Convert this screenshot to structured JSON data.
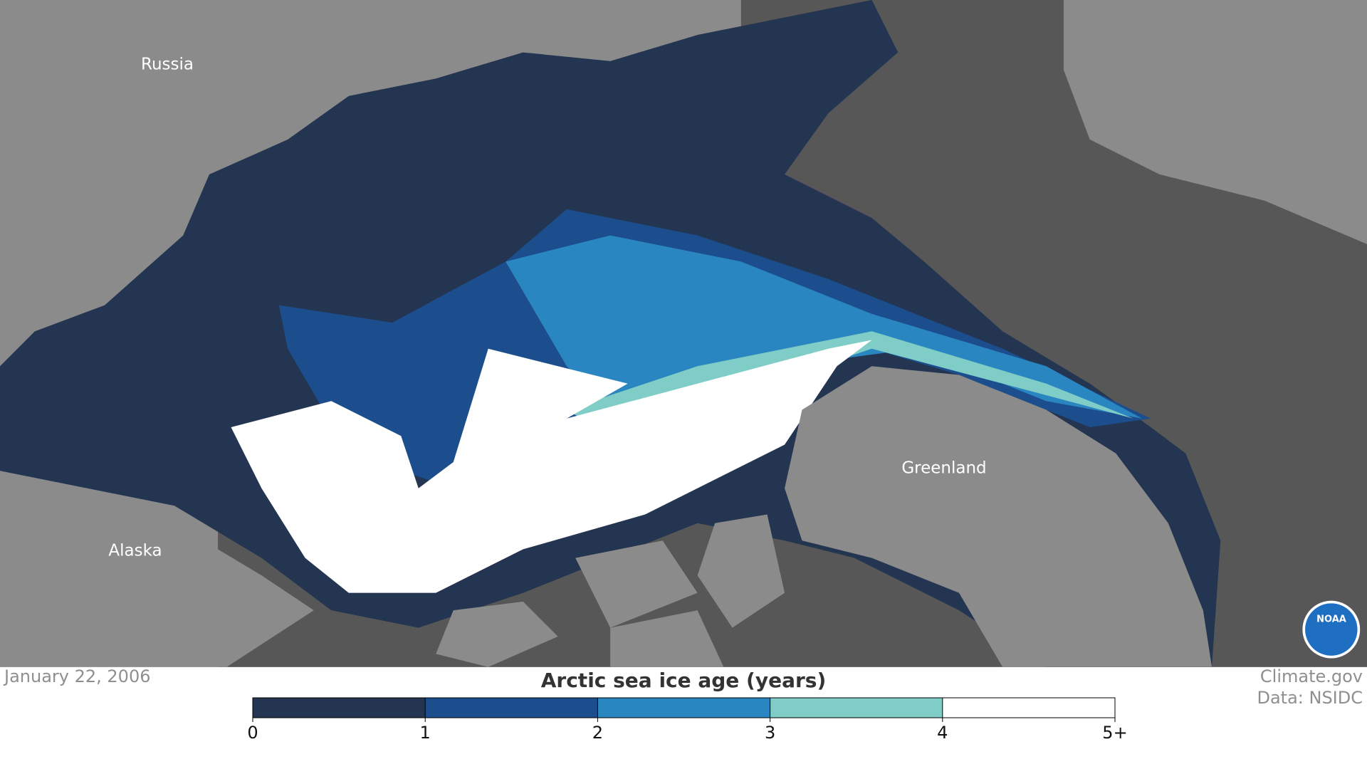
{
  "map": {
    "labels": [
      {
        "text": "Russia"
      },
      {
        "text": "Alaska"
      },
      {
        "text": "Greenland"
      }
    ],
    "date": "January 22, 2006",
    "credit": "Climate.gov",
    "source": "Data: NSIDC",
    "logo_text": "NOAA"
  },
  "legend": {
    "title": "Arctic sea ice age (years)",
    "lim": [
      0,
      5
    ],
    "ticks": [
      0,
      1,
      2,
      3,
      4,
      {
        "value": 5,
        "label": "5+"
      }
    ],
    "colors": [
      "#233550",
      "#1c4e8e",
      "#2a86c0",
      "#7fcdc6",
      "#ffffff"
    ]
  }
}
